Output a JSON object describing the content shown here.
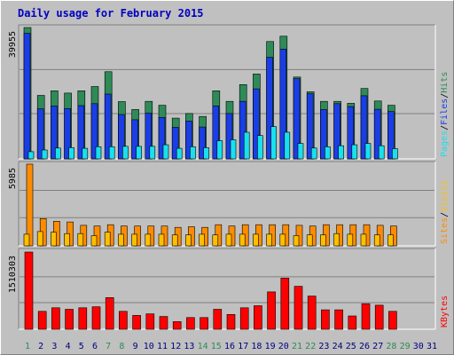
{
  "title": "Daily usage for February 2015",
  "colors": {
    "background": "#c0c0c0",
    "gridline": "#808080",
    "hits": "#2e8b57",
    "files": "#1a3ee6",
    "pages": "#19e0ef",
    "visits": "#ffbf00",
    "sites": "#ff8c00",
    "kbytes": "#ff0000",
    "title": "#0000c0",
    "weekend_day": "#2e8b57",
    "weekday": "#000080"
  },
  "chart_data": [
    {
      "type": "bar",
      "panel": "top",
      "max_label": "39955",
      "y_legend": [
        {
          "text": "Pages",
          "color": "#19e0ef"
        },
        {
          "text": "/",
          "color": "#000000"
        },
        {
          "text": "Files",
          "color": "#1a3ee6"
        },
        {
          "text": "/",
          "color": "#000000"
        },
        {
          "text": "Hits",
          "color": "#2e8b57"
        }
      ],
      "ylim": [
        0,
        39955
      ],
      "categories": [
        "1",
        "2",
        "3",
        "4",
        "5",
        "6",
        "7",
        "8",
        "9",
        "10",
        "11",
        "12",
        "13",
        "14",
        "15",
        "16",
        "17",
        "18",
        "19",
        "20",
        "21",
        "22",
        "23",
        "24",
        "25",
        "26",
        "27",
        "28",
        "29",
        "30",
        "31"
      ],
      "weekend_days": [
        "1",
        "7",
        "8",
        "14",
        "15",
        "21",
        "22",
        "28",
        "29"
      ],
      "series": [
        {
          "name": "Hits",
          "values": [
            39955,
            19300,
            20700,
            20000,
            20700,
            22000,
            26500,
            17400,
            15000,
            17500,
            16300,
            12400,
            13800,
            12900,
            20700,
            17500,
            22600,
            25800,
            35700,
            37300,
            24900,
            20400,
            17500,
            17500,
            16900,
            21400,
            17600,
            16300,
            null,
            null,
            null
          ]
        },
        {
          "name": "Files",
          "values": [
            38200,
            15200,
            16100,
            15300,
            16200,
            16800,
            19700,
            13500,
            11900,
            13900,
            12600,
            9600,
            11500,
            9700,
            16100,
            13800,
            17500,
            21300,
            30900,
            33400,
            24400,
            19800,
            15000,
            16800,
            15900,
            19200,
            15100,
            14400,
            null,
            null,
            null
          ]
        },
        {
          "name": "Pages",
          "values": [
            2200,
            2700,
            3300,
            3400,
            3200,
            3700,
            3700,
            3800,
            3800,
            3800,
            4300,
            3200,
            3700,
            3400,
            5500,
            5800,
            8100,
            7100,
            9800,
            8100,
            4700,
            3300,
            3700,
            4000,
            4300,
            4700,
            4000,
            3100,
            null,
            null,
            null
          ]
        }
      ]
    },
    {
      "type": "bar",
      "panel": "middle",
      "max_label": "5985",
      "y_legend": [
        {
          "text": "Sites",
          "color": "#ff8c00"
        },
        {
          "text": "/",
          "color": "#000000"
        },
        {
          "text": "Visits",
          "color": "#ffbf00"
        }
      ],
      "ylim": [
        0,
        5985
      ],
      "categories": [
        "1",
        "2",
        "3",
        "4",
        "5",
        "6",
        "7",
        "8",
        "9",
        "10",
        "11",
        "12",
        "13",
        "14",
        "15",
        "16",
        "17",
        "18",
        "19",
        "20",
        "21",
        "22",
        "23",
        "24",
        "25",
        "26",
        "27",
        "28",
        "29",
        "30",
        "31"
      ],
      "series": [
        {
          "name": "Sites",
          "values": [
            5985,
            2000,
            1800,
            1750,
            1500,
            1450,
            1550,
            1450,
            1450,
            1450,
            1450,
            1350,
            1400,
            1350,
            1550,
            1450,
            1550,
            1550,
            1550,
            1550,
            1500,
            1450,
            1550,
            1550,
            1550,
            1550,
            1500,
            1450,
            null,
            null,
            null
          ]
        },
        {
          "name": "Visits",
          "values": [
            850,
            1050,
            1000,
            900,
            900,
            750,
            1000,
            850,
            850,
            850,
            850,
            800,
            800,
            850,
            800,
            850,
            850,
            850,
            850,
            850,
            750,
            800,
            800,
            900,
            850,
            850,
            800,
            800,
            null,
            null,
            null
          ]
        }
      ]
    },
    {
      "type": "bar",
      "panel": "bottom",
      "max_label": "1510303",
      "y_legend": [
        {
          "text": "KBytes",
          "color": "#ff0000"
        }
      ],
      "ylim": [
        0,
        1510303
      ],
      "categories": [
        "1",
        "2",
        "3",
        "4",
        "5",
        "6",
        "7",
        "8",
        "9",
        "10",
        "11",
        "12",
        "13",
        "14",
        "15",
        "16",
        "17",
        "18",
        "19",
        "20",
        "21",
        "22",
        "23",
        "24",
        "25",
        "26",
        "27",
        "28",
        "29",
        "30",
        "31"
      ],
      "series": [
        {
          "name": "KBytes",
          "values": [
            1510303,
            350000,
            420000,
            390000,
            420000,
            440000,
            620000,
            350000,
            270000,
            300000,
            250000,
            150000,
            230000,
            230000,
            390000,
            290000,
            420000,
            460000,
            730000,
            1000000,
            840000,
            650000,
            380000,
            380000,
            260000,
            500000,
            470000,
            350000,
            null,
            null,
            null
          ]
        }
      ]
    }
  ]
}
